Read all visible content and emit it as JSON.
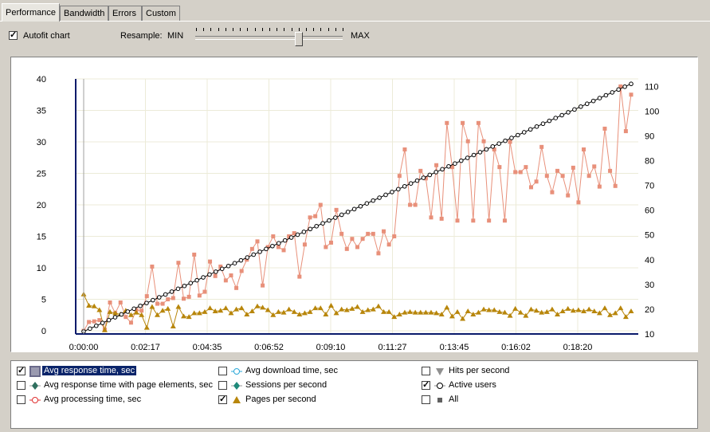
{
  "tabs": [
    "Performance",
    "Bandwidth",
    "Errors",
    "Custom"
  ],
  "autofit": {
    "label": "Autofit chart",
    "checked": true
  },
  "resample": {
    "label": "Resample:",
    "min": "MIN",
    "max": "MAX",
    "level": 0.68
  },
  "legend": [
    {
      "label": "Avg response time, sec",
      "checked": true,
      "selected": true,
      "icon": "pattern-swatch-icon",
      "color": "#e8907a"
    },
    {
      "label": "Avg response time with page elements, sec",
      "checked": false,
      "icon": "diamond-icon",
      "color": "#2f6f5f"
    },
    {
      "label": "Avg processing time, sec",
      "checked": false,
      "icon": "circle-icon",
      "color": "#e03030"
    },
    {
      "label": "Avg download time, sec",
      "checked": false,
      "icon": "circle-icon",
      "color": "#2aa7d8"
    },
    {
      "label": "Sessions per second",
      "checked": false,
      "icon": "diamond-icon",
      "color": "#1f8a7a"
    },
    {
      "label": "Pages per second",
      "checked": true,
      "icon": "triangle-icon",
      "color": "#b8860b"
    },
    {
      "label": "Hits per second",
      "checked": false,
      "icon": "triangle-down-icon",
      "color": "#909090"
    },
    {
      "label": "Active users",
      "checked": true,
      "icon": "circle-icon",
      "color": "#000000"
    },
    {
      "label": "All",
      "checked": false,
      "icon": "square-icon",
      "color": "#606060"
    }
  ],
  "chart_data": {
    "type": "line",
    "x_tick_labels": [
      "0:00:00",
      "0:02:17",
      "0:04:35",
      "0:06:52",
      "0:09:10",
      "0:11:27",
      "0:13:45",
      "0:16:02",
      "0:18:20"
    ],
    "left_axis": {
      "ticks": [
        0,
        5,
        10,
        15,
        20,
        25,
        30,
        35,
        40
      ],
      "ylim": [
        -0.5,
        40
      ]
    },
    "right_axis": {
      "ticks": [
        10,
        20,
        30,
        40,
        50,
        60,
        70,
        80,
        90,
        100,
        110
      ],
      "ylim": [
        10,
        113
      ]
    },
    "grid": true,
    "series": [
      {
        "name": "Avg response time, sec",
        "axis": "left",
        "color": "#e8907a",
        "marker": "square",
        "values": [
          0,
          1.4,
          1.5,
          1.7,
          0.2,
          4.5,
          2.8,
          4.5,
          2.2,
          1.3,
          3.3,
          3.2,
          5.5,
          10.2,
          4.3,
          4.3,
          5,
          5.2,
          10.8,
          5.1,
          5.4,
          12.1,
          5.6,
          6.2,
          11,
          8.7,
          10.2,
          8,
          8.8,
          6.8,
          9.5,
          11.3,
          13,
          14.2,
          7.2,
          13.3,
          15,
          13.3,
          12.8,
          15,
          15.5,
          8.6,
          13.7,
          18,
          18.2,
          20,
          13.3,
          14,
          19.2,
          15.4,
          13,
          14.6,
          13.3,
          14.6,
          15.4,
          15.4,
          12.3,
          15.8,
          13.7,
          15,
          24.6,
          28.8,
          20,
          20,
          25.4,
          24.2,
          18,
          26.3,
          17.8,
          33,
          26,
          17.5,
          33,
          30.1,
          17.5,
          33,
          30.1,
          17.5,
          28.8,
          26,
          17.5,
          30,
          25.2,
          25.2,
          26,
          22.8,
          23.7,
          29.2,
          24.6,
          22,
          25.4,
          24.6,
          21.5,
          25.9,
          20.4,
          28.8,
          24.6,
          26.1,
          22.9,
          32.1,
          25.4,
          23,
          38.8,
          31.7,
          37.5
        ]
      },
      {
        "name": "Pages per second",
        "axis": "left",
        "color": "#b8860b",
        "marker": "triangle",
        "values": [
          5.8,
          4,
          3.9,
          3.3,
          0.1,
          3,
          2.8,
          2.6,
          3.2,
          2.5,
          2.9,
          2.5,
          0.5,
          3.8,
          2.5,
          3.2,
          3.5,
          0.7,
          3.8,
          2.3,
          2.2,
          2.8,
          2.8,
          3,
          3.6,
          3.1,
          3.2,
          3.6,
          2.8,
          3.4,
          3.6,
          2.6,
          3.1,
          3.9,
          3.7,
          3.3,
          2.5,
          3,
          2.9,
          3.4,
          3,
          2.6,
          2.8,
          3,
          3.6,
          3.6,
          2.6,
          4,
          2.8,
          3.4,
          3.3,
          3.5,
          3.8,
          3,
          3.3,
          3.4,
          3.9,
          3,
          3,
          2.2,
          2.6,
          2.9,
          3,
          2.9,
          2.9,
          2.9,
          2.9,
          2.8,
          2.6,
          3.7,
          2.3,
          3,
          1.9,
          3.1,
          2.6,
          2.9,
          3.4,
          3.3,
          3.3,
          3,
          2.9,
          2.4,
          3.5,
          2.9,
          2.4,
          3.4,
          3.2,
          2.9,
          3,
          3.4,
          2.6,
          3.1,
          3.5,
          3.2,
          3.3,
          3.1,
          3.4,
          3.1,
          2.8,
          3.6,
          2.5,
          2.8,
          3.6,
          2.2,
          3.1
        ]
      },
      {
        "name": "Active users",
        "axis": "right",
        "color": "#000000",
        "marker": "circle",
        "start": 11,
        "end": 111
      }
    ]
  }
}
